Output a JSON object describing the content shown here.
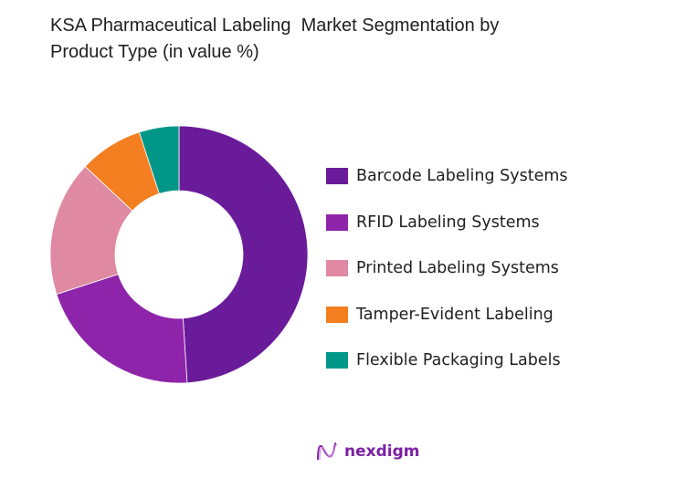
{
  "title": {
    "line1": "KSA Pharmaceutical Labeling  Market Segmentation by",
    "line2": "Product Type (in value %)"
  },
  "chart_data": {
    "type": "pie",
    "subtype": "donut",
    "title": "KSA Pharmaceutical Labeling  Market Segmentation by Product Type (in value %)",
    "categories": [
      "Barcode Labeling Systems",
      "RFID Labeling Systems",
      "Printed Labeling Systems",
      "Tamper-Evident Labeling",
      "Flexible Packaging Labels"
    ],
    "values": [
      49,
      21,
      17,
      8,
      5
    ],
    "colors": [
      "#6a1b9a",
      "#8e24aa",
      "#df8aa2",
      "#f47f20",
      "#009688"
    ],
    "legend_position": "right",
    "data_labels": false
  },
  "legend": {
    "items": [
      {
        "label": "Barcode Labeling Systems",
        "color": "#6a1b9a"
      },
      {
        "label": "RFID Labeling Systems",
        "color": "#8e24aa"
      },
      {
        "label": "Printed Labeling Systems",
        "color": "#df8aa2"
      },
      {
        "label": "Tamper-Evident Labeling",
        "color": "#f47f20"
      },
      {
        "label": "Flexible Packaging Labels",
        "color": "#009688"
      }
    ]
  },
  "footer": {
    "brand": "nexdigm"
  }
}
